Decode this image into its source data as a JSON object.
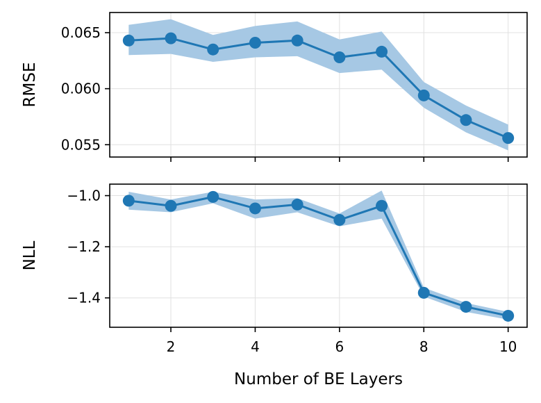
{
  "chart_data": [
    {
      "type": "line",
      "panel": "top",
      "title": "",
      "xlabel": "",
      "ylabel": "RMSE",
      "x": [
        1,
        2,
        3,
        4,
        5,
        6,
        7,
        8,
        9,
        10
      ],
      "series": [
        {
          "name": "RMSE",
          "values": [
            0.0643,
            0.0645,
            0.0635,
            0.0641,
            0.0643,
            0.0628,
            0.0633,
            0.0594,
            0.0572,
            0.0556
          ],
          "lower": [
            0.063,
            0.0631,
            0.0624,
            0.0628,
            0.0629,
            0.0614,
            0.0617,
            0.0583,
            0.0561,
            0.0545
          ],
          "upper": [
            0.0657,
            0.0662,
            0.0648,
            0.0656,
            0.066,
            0.0644,
            0.0651,
            0.0606,
            0.0585,
            0.0568
          ],
          "color": "#1f77b4",
          "band_color": "#a6c8e4"
        }
      ],
      "yticks": [
        0.055,
        0.06,
        0.065
      ],
      "ytick_labels": [
        "0.055",
        "0.060",
        "0.065"
      ],
      "xlim": [
        0.55,
        10.45
      ],
      "ylim": [
        0.0539,
        0.0668
      ],
      "grid": true
    },
    {
      "type": "line",
      "panel": "bottom",
      "title": "",
      "xlabel": "Number of BE Layers",
      "ylabel": "NLL",
      "x": [
        1,
        2,
        3,
        4,
        5,
        6,
        7,
        8,
        9,
        10
      ],
      "series": [
        {
          "name": "NLL",
          "values": [
            -1.02,
            -1.04,
            -1.005,
            -1.05,
            -1.035,
            -1.095,
            -1.04,
            -1.38,
            -1.435,
            -1.47
          ],
          "lower": [
            -1.055,
            -1.065,
            -1.03,
            -1.09,
            -1.065,
            -1.12,
            -1.09,
            -1.395,
            -1.455,
            -1.485
          ],
          "upper": [
            -0.985,
            -1.015,
            -0.985,
            -1.015,
            -1.01,
            -1.07,
            -0.98,
            -1.36,
            -1.42,
            -1.455
          ],
          "color": "#1f77b4",
          "band_color": "#a6c8e4"
        }
      ],
      "yticks": [
        -1.0,
        -1.2,
        -1.4
      ],
      "ytick_labels": [
        "−1.0",
        "−1.2",
        "−1.4"
      ],
      "xticks": [
        2,
        4,
        6,
        8,
        10
      ],
      "xtick_labels": [
        "2",
        "4",
        "6",
        "8",
        "10"
      ],
      "xlim": [
        0.55,
        10.45
      ],
      "ylim": [
        -1.515,
        -0.955
      ],
      "grid": true
    }
  ]
}
